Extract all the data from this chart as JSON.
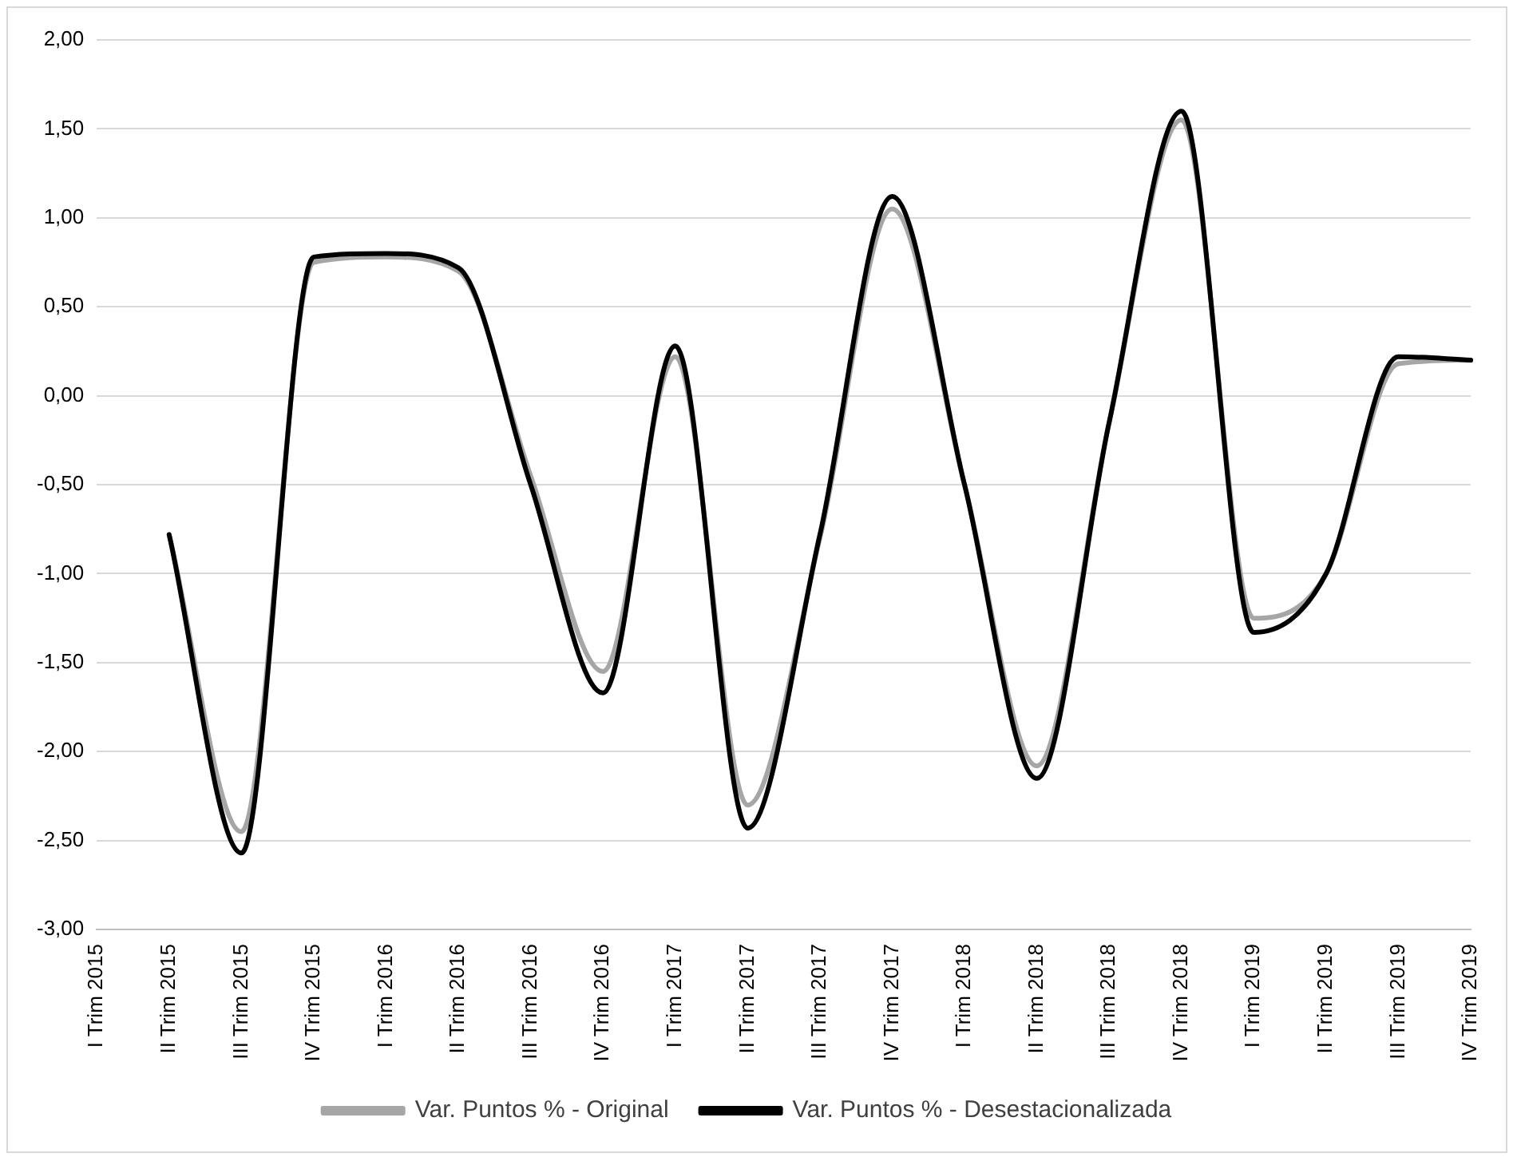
{
  "chart_data": {
    "type": "line",
    "categories": [
      "I Trim 2015",
      "II Trim 2015",
      "III Trim 2015",
      "IV Trim 2015",
      "I Trim 2016",
      "II Trim 2016",
      "III Trim 2016",
      "IV Trim 2016",
      "I Trim 2017",
      "II Trim 2017",
      "III Trim 2017",
      "IV Trim 2017",
      "I Trim 2018",
      "II Trim 2018",
      "III Trim 2018",
      "IV Trim 2018",
      "I Trim 2019",
      "II Trim 2019",
      "III Trim 2019",
      "IV Trim 2019"
    ],
    "series": [
      {
        "name": "Var. Puntos % - Original",
        "color": "#a6a6a6",
        "values": [
          null,
          -0.78,
          -2.45,
          0.75,
          0.78,
          0.7,
          -0.45,
          -1.55,
          0.22,
          -2.3,
          -0.8,
          1.05,
          -0.5,
          -2.08,
          -0.15,
          1.55,
          -1.25,
          -1.0,
          0.18,
          0.2
        ]
      },
      {
        "name": "Var. Puntos % - Desestacionalizada",
        "color": "#000000",
        "values": [
          null,
          -0.78,
          -2.57,
          0.78,
          0.8,
          0.72,
          -0.5,
          -1.67,
          0.28,
          -2.43,
          -0.78,
          1.12,
          -0.5,
          -2.15,
          -0.15,
          1.6,
          -1.33,
          -1.0,
          0.22,
          0.2
        ]
      }
    ],
    "ylim": [
      -3,
      2
    ],
    "yticks": [
      {
        "value": -3,
        "label": "-3,00"
      },
      {
        "value": -2.5,
        "label": "-2,50"
      },
      {
        "value": -2,
        "label": "-2,00"
      },
      {
        "value": -1.5,
        "label": "-1,50"
      },
      {
        "value": -1,
        "label": "-1,00"
      },
      {
        "value": -0.5,
        "label": "-0,50"
      },
      {
        "value": 0,
        "label": "0,00"
      },
      {
        "value": 0.5,
        "label": "0,50"
      },
      {
        "value": 1,
        "label": "1,00"
      },
      {
        "value": 1.5,
        "label": "1,50"
      },
      {
        "value": 2,
        "label": "2,00"
      }
    ],
    "grid": "y",
    "legend": "bottom",
    "marker": "none",
    "line_style": "solid"
  }
}
